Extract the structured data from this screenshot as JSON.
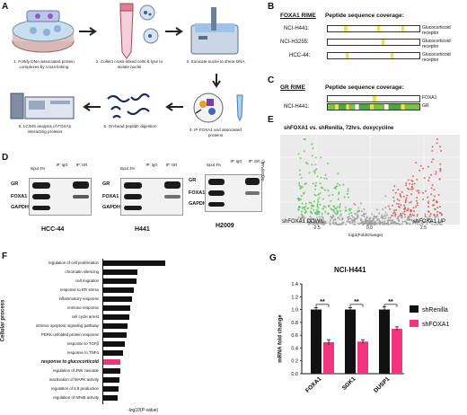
{
  "panel_letters": [
    "A",
    "B",
    "C",
    "D",
    "E",
    "F",
    "G"
  ],
  "panelA": {
    "steps": [
      "1. Fortify DNA-associated protein complexes by cross-linking",
      "2. Collect cross-linked cells & lyse to isolate nuclei",
      "3. Sonicate nuclei to shear DNA",
      "4. IP FOXA1 and associated proteins",
      "5. On-bead peptide digestion",
      "6. LC/MS analysis of FOXA1 interacting proteins"
    ]
  },
  "panelB": {
    "title_left": "FOXA1 RIME",
    "title_right": "Peptide sequence coverage:",
    "rows": [
      {
        "label": "NCI-H441:",
        "target": "Glucocorticoid receptor"
      },
      {
        "label": "NCI-H3255:",
        "target": "Glucocorticoid receptor"
      },
      {
        "label": "HCC-44:",
        "target": "Glucocorticoid receptor"
      }
    ]
  },
  "panelC": {
    "title_left": "GR RIME",
    "title_right": "Peptide sequence coverage:",
    "row_label": "NCI-H441:",
    "targets": [
      "FOXA1",
      "GR"
    ]
  },
  "panelD": {
    "blots": [
      {
        "cell": "HCC-44",
        "cols": [
          "Input 4%",
          "IP: IgG",
          "IP: GR"
        ],
        "rows": [
          "GR",
          "FOXA1",
          "GAPDH"
        ]
      },
      {
        "cell": "H441",
        "cols": [
          "Input 4%",
          "IP: IgG",
          "IP: GR"
        ],
        "rows": [
          "GR",
          "FOXA1",
          "GAPDH"
        ]
      },
      {
        "cell": "H2009",
        "cols": [
          "Input 4%",
          "IP: IgG",
          "IP: GR"
        ],
        "rows": [
          "GR",
          "FOXA1",
          "GAPDH"
        ]
      }
    ]
  },
  "panelE": {
    "title": "shFOXA1 vs. shRenilla, 72hrs. doxycycline",
    "ylabel": "-log10(Padj)",
    "xlabel": "log2(FoldChange)",
    "xticks": [
      "-2.5",
      "0.0",
      "2.5"
    ],
    "label_down": "shFOXA1 DOWN",
    "label_up": "shFOXA1 UP"
  },
  "panelF": {
    "ylabel": "Cellular process",
    "xlabel": "-log10(P-value)",
    "highlight_color": "#f0357f",
    "terms": [
      "regulation of cell proliferation",
      "chromatin silencing",
      "cell migration",
      "response to ER stress",
      "inflammatory response",
      "immune response",
      "cell cycle arrest",
      "intrinsic apoptotic signaling pathway",
      "PERK-unfolded protein response",
      "response to TGFβ",
      "response to TNFα",
      "response to glucocorticoid",
      "regulation of JNK cascade",
      "inactivation of MAPK activity",
      "regulation of IL8 production",
      "regulation of NFκB activity"
    ]
  },
  "chart_data": {
    "type": "bar",
    "title": "NCI-H441",
    "ylabel": "mRNA fold change",
    "xlabel": "",
    "ylim": [
      0,
      1.4
    ],
    "yticks": [
      "0.0",
      "0.2",
      "0.4",
      "0.6",
      "0.8",
      "1.0",
      "1.2",
      "1.4"
    ],
    "categories": [
      "FOXA1",
      "SGK1",
      "DUSP1"
    ],
    "series": [
      {
        "name": "shRenilla",
        "color": "#111111",
        "values": [
          1.0,
          1.0,
          1.0
        ],
        "errors": [
          0.03,
          0.03,
          0.04
        ]
      },
      {
        "name": "shFOXA1",
        "color": "#f0357f",
        "values": [
          0.49,
          0.5,
          0.7
        ],
        "errors": [
          0.04,
          0.03,
          0.03
        ]
      }
    ],
    "significance": [
      "**",
      "**",
      "**"
    ],
    "legend_position": "right"
  }
}
